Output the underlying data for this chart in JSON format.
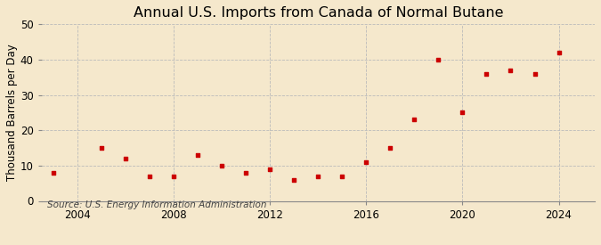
{
  "title": "Annual U.S. Imports from Canada of Normal Butane",
  "ylabel": "Thousand Barrels per Day",
  "source": "Source: U.S. Energy Information Administration",
  "years": [
    2003,
    2005,
    2006,
    2007,
    2008,
    2009,
    2010,
    2011,
    2012,
    2013,
    2014,
    2015,
    2016,
    2017,
    2018,
    2019,
    2020,
    2021,
    2022,
    2023,
    2024
  ],
  "values": [
    8,
    15,
    12,
    7,
    7,
    13,
    10,
    8,
    9,
    6,
    7,
    7,
    11,
    15,
    23,
    40,
    25,
    36,
    37,
    36,
    42
  ],
  "marker_color": "#cc0000",
  "background_color": "#f5e8cc",
  "grid_color": "#bbbbbb",
  "xlim": [
    2002.5,
    2025.5
  ],
  "ylim": [
    0,
    50
  ],
  "yticks": [
    0,
    10,
    20,
    30,
    40,
    50
  ],
  "xticks": [
    2004,
    2008,
    2012,
    2016,
    2020,
    2024
  ],
  "title_fontsize": 11.5,
  "label_fontsize": 8.5,
  "tick_fontsize": 8.5,
  "source_fontsize": 7.5
}
